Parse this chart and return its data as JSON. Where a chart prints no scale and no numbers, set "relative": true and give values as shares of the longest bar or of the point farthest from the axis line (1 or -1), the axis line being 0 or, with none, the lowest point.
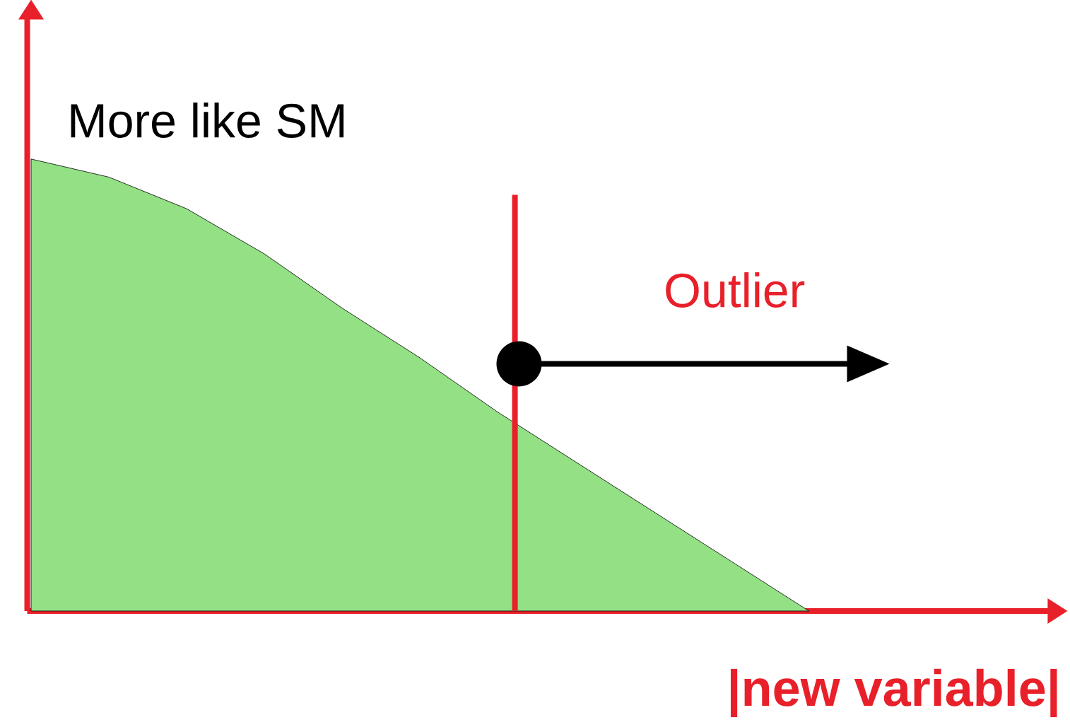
{
  "chart_data": {
    "type": "area",
    "relative": true,
    "categories": [
      null,
      null,
      null,
      null,
      null,
      null,
      null,
      null,
      null,
      null,
      null
    ],
    "series": [
      {
        "color": "#93e085",
        "values": [
          1.0,
          0.96,
          0.89,
          0.79,
          0.67,
          0.56,
          0.44,
          0.33,
          0.22,
          0.11,
          0
        ]
      }
    ],
    "xlabel": "|new variable|",
    "annotations": [
      "More like SM",
      "Outlier"
    ]
  }
}
